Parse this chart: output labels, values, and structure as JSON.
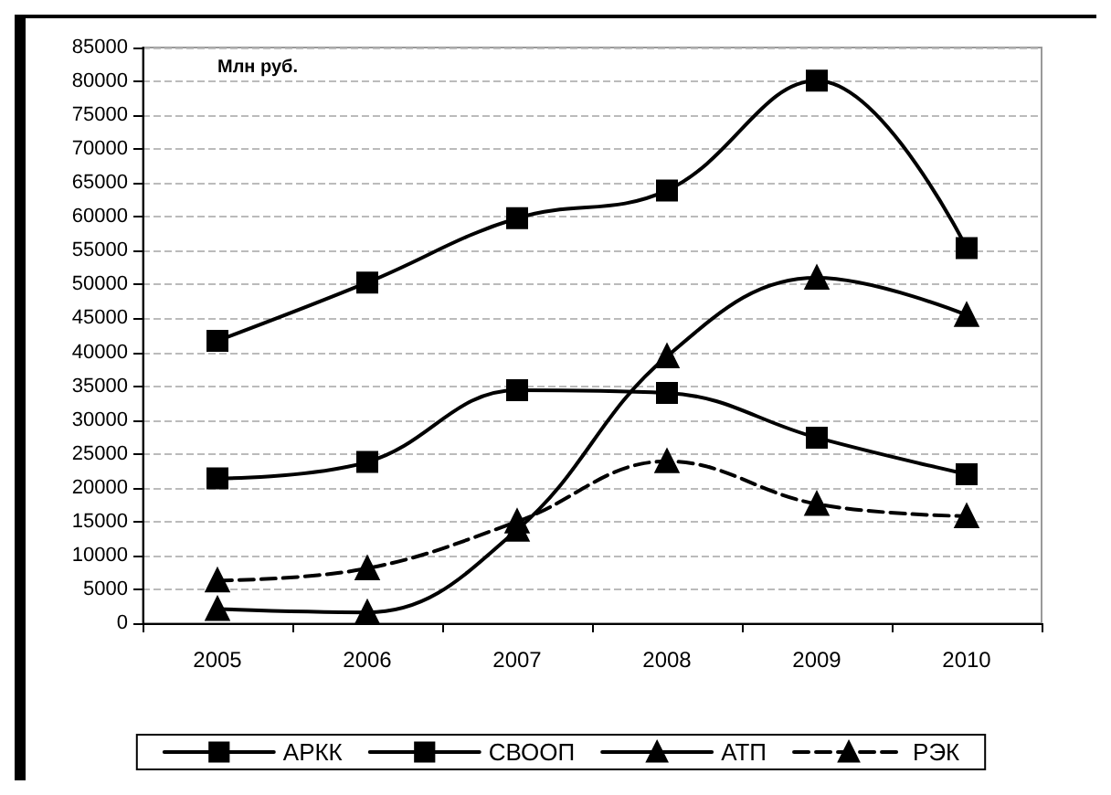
{
  "chart_data": {
    "type": "line",
    "annotations": [
      "Млн руб."
    ],
    "categories": [
      "2005",
      "2006",
      "2007",
      "2008",
      "2009",
      "2010"
    ],
    "series": [
      {
        "name": "АРКК",
        "color": "#000000",
        "marker": "square",
        "line_style": "solid",
        "values": [
          41700,
          50300,
          59800,
          63900,
          80100,
          55400
        ]
      },
      {
        "name": "СВООП",
        "color": "#000000",
        "marker": "square",
        "line_style": "solid",
        "values": [
          21400,
          23800,
          34400,
          34000,
          27400,
          22000
        ]
      },
      {
        "name": "АТП",
        "color": "#000000",
        "marker": "triangle",
        "line_style": "solid",
        "values": [
          2100,
          1600,
          13800,
          39400,
          51000,
          45500
        ]
      },
      {
        "name": "РЭК",
        "color": "#000000",
        "marker": "triangle",
        "line_style": "dashed",
        "values": [
          6300,
          8100,
          15000,
          23900,
          17600,
          15800
        ]
      }
    ],
    "ylim": [
      0,
      85000
    ],
    "yticks": [
      0,
      5000,
      10000,
      15000,
      20000,
      25000,
      30000,
      35000,
      40000,
      45000,
      50000,
      55000,
      60000,
      65000,
      70000,
      75000,
      80000,
      85000
    ],
    "grid": "y",
    "legend": "bottom"
  }
}
